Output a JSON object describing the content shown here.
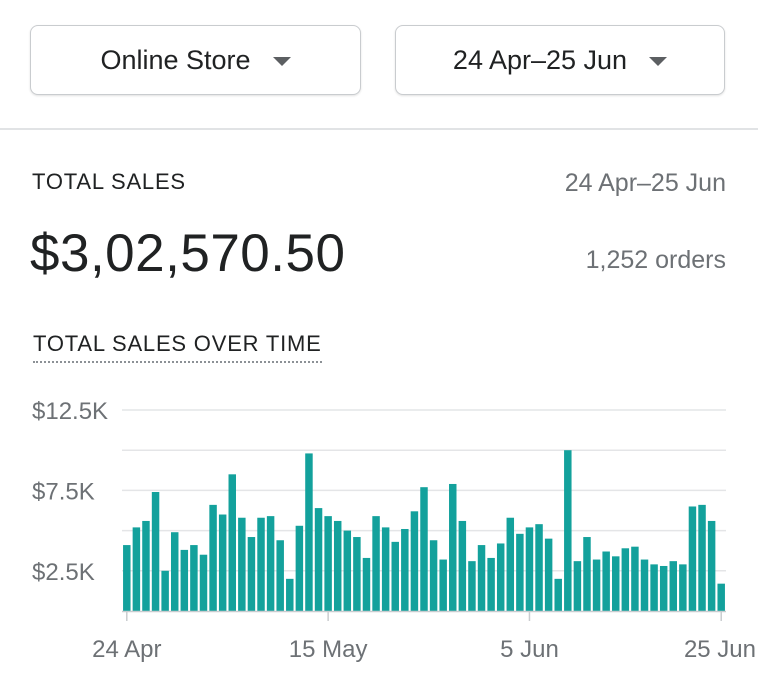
{
  "filters": {
    "store_label": "Online Store",
    "date_label": "24 Apr–25 Jun"
  },
  "summary": {
    "title": "TOTAL SALES",
    "date_range": "24 Apr–25 Jun",
    "total": "$3,02,570.50",
    "orders": "1,252 orders"
  },
  "chart_section": {
    "title": "TOTAL SALES OVER TIME"
  },
  "colors": {
    "bar": "#13a19c",
    "grid": "#e4e5e7",
    "axis": "#c9cccf"
  },
  "chart_data": {
    "type": "bar",
    "x_start": "24 Apr",
    "x_end": "25 Jun",
    "x_tick_labels": [
      "24 Apr",
      "15 May",
      "5 Jun",
      "25 Jun"
    ],
    "x_tick_indices": [
      0,
      21,
      42,
      62
    ],
    "y_tick_labels": [
      "$12.5K",
      "$7.5K",
      "$2.5K"
    ],
    "y_tick_values": [
      12500,
      7500,
      2500
    ],
    "ylim": [
      0,
      12500
    ],
    "grid": true,
    "values": [
      4100,
      5200,
      5600,
      7400,
      2500,
      4900,
      3800,
      4100,
      3500,
      6600,
      6000,
      8500,
      5800,
      4600,
      5800,
      5900,
      4400,
      2000,
      5300,
      9800,
      6400,
      5900,
      5600,
      5000,
      4600,
      3300,
      5900,
      5200,
      4300,
      5100,
      6200,
      7700,
      4400,
      3200,
      7900,
      5600,
      3100,
      4100,
      3300,
      4200,
      5800,
      4800,
      5200,
      5400,
      4500,
      2000,
      10000,
      3100,
      4600,
      3200,
      3700,
      3400,
      3900,
      4000,
      3200,
      2900,
      2800,
      3100,
      2900,
      6500,
      6600,
      5600,
      1700
    ]
  }
}
